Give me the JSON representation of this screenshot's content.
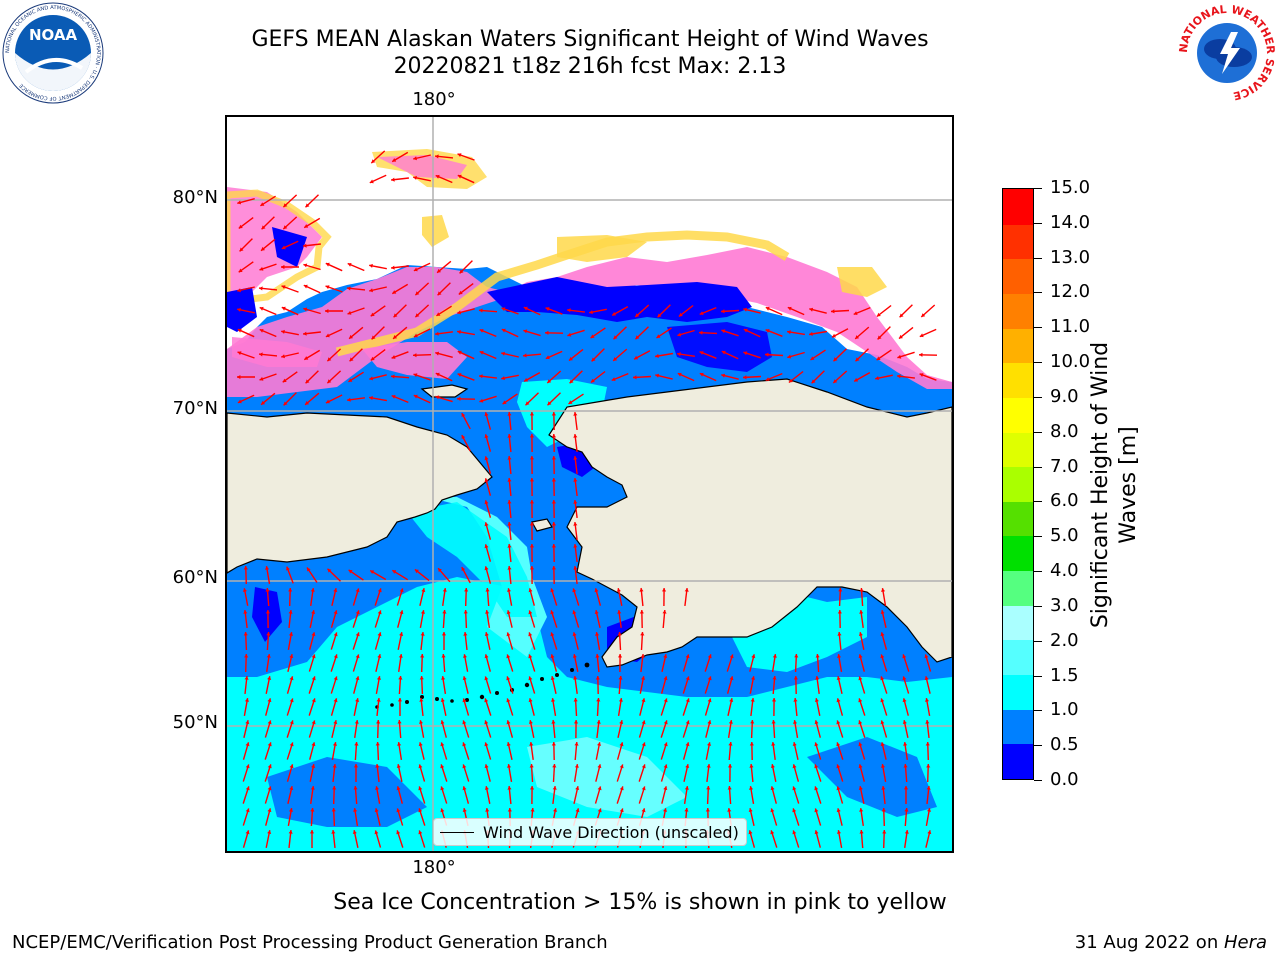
{
  "header": {
    "title_line1": "GEFS MEAN Alaskan Waters Significant Height of Wind Waves",
    "title_line2": "20220821 t18z 216h fcst   Max: 2.13"
  },
  "logos": {
    "noaa_text": "NOAA",
    "noaa_ring_text": "NATIONAL OCEANIC AND ATMOSPHERIC ADMINISTRATION · U.S. DEPARTMENT OF COMMERCE",
    "nws_ring_text": "NATIONAL WEATHER SERVICE"
  },
  "map": {
    "lon_label_top": "180°",
    "lon_label_bottom": "180°",
    "lat_labels": [
      "80°N",
      "70°N",
      "60°N",
      "50°N"
    ],
    "legend_label": "Wind Wave Direction (unscaled)",
    "colors": {
      "land": "#efedde",
      "ice_pink": "#ff7ad4",
      "ice_yellow": "#ffd84a",
      "grid": "#b0b0b0",
      "arrow": "#ff0000"
    }
  },
  "colorbar": {
    "title_line1": "Significant Height of Wind",
    "title_line2": "Waves [m]",
    "ticks": [
      "0.0",
      "0.5",
      "1.0",
      "1.5",
      "2.0",
      "3.0",
      "4.0",
      "5.0",
      "6.0",
      "7.0",
      "8.0",
      "9.0",
      "10.0",
      "11.0",
      "12.0",
      "13.0",
      "14.0",
      "15.0"
    ],
    "colors": [
      "#0000ff",
      "#0080ff",
      "#00ffff",
      "#55ffff",
      "#aaffff",
      "#55ff80",
      "#00e000",
      "#55e000",
      "#aaff00",
      "#dfff00",
      "#ffff00",
      "#ffe000",
      "#ffb000",
      "#ff8000",
      "#ff6000",
      "#ff3000",
      "#ff0000"
    ]
  },
  "note": "Sea Ice Concentration > 15% is shown in pink to yellow",
  "footer": {
    "left": "NCEP/EMC/Verification Post Processing Product Generation Branch",
    "date": "31 Aug 2022 on ",
    "host": "Hera"
  }
}
